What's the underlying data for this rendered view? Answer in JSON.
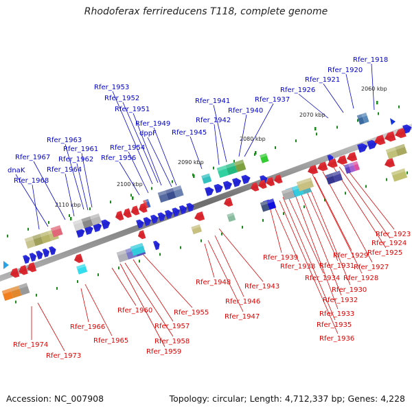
{
  "title": "Rhodoferax ferrireducens T118, complete genome",
  "footer": {
    "accession": "Accession: NC_007908",
    "topology": "Topology: circular; Length: 4,712,337 bp; Genes: 4,228"
  },
  "colors": {
    "axis": "#8c8c8c",
    "top_label": "#0000cc",
    "bottom_label": "#dd0000",
    "tick": "#1a8a1a"
  },
  "scale_ticks": [
    {
      "label": "2060 kbp",
      "kbp": 2060
    },
    {
      "label": "2070 kbp",
      "kbp": 2070
    },
    {
      "label": "2080 kbp",
      "kbp": 2080
    },
    {
      "label": "2090 kbp",
      "kbp": 2090
    },
    {
      "label": "2100 kbp",
      "kbp": 2100
    },
    {
      "label": "2110 kbp",
      "kbp": 2110
    }
  ],
  "top_genes": [
    "Rfer_1918",
    "Rfer_1920",
    "Rfer_1921",
    "Rfer_1926",
    "Rfer_1937",
    "Rfer_1941",
    "Rfer_1940",
    "Rfer_1942",
    "Rfer_1945",
    "Rfer_1949",
    "dppF",
    "Rfer_1953",
    "Rfer_1952",
    "Rfer_1951",
    "Rfer_1954",
    "Rfer_1956",
    "Rfer_1963",
    "Rfer_1961",
    "Rfer_1962",
    "Rfer_1967",
    "dnaK",
    "Rfer_1964",
    "Rfer_1968"
  ],
  "bottom_genes": [
    "Rfer_1923",
    "Rfer_1924",
    "Rfer_1925",
    "Rfer_1927",
    "Rfer_1928",
    "Rfer_1929",
    "Rfer_1930",
    "Rfer_1931",
    "Rfer_1932",
    "Rfer_1933",
    "Rfer_1934",
    "Rfer_1935",
    "Rfer_1936",
    "Rfer_1938",
    "Rfer_1939",
    "Rfer_1943",
    "Rfer_1946",
    "Rfer_1947",
    "Rfer_1948",
    "Rfer_1955",
    "Rfer_1957",
    "Rfer_1958",
    "Rfer_1959",
    "Rfer_1960",
    "Rfer_1965",
    "Rfer_1966",
    "Rfer_1973",
    "Rfer_1974"
  ]
}
